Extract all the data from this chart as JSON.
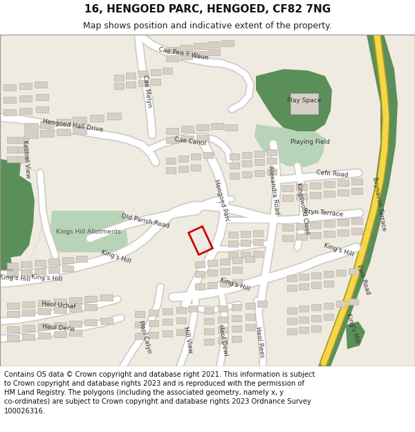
{
  "title": "16, HENGOED PARC, HENGOED, CF82 7NG",
  "subtitle": "Map shows position and indicative extent of the property.",
  "footer": "Contains OS data © Crown copyright and database right 2021. This information is subject\nto Crown copyright and database rights 2023 and is reproduced with the permission of\nHM Land Registry. The polygons (including the associated geometry, namely x, y\nco-ordinates) are subject to Crown copyright and database rights 2023 Ordnance Survey\n100026316.",
  "map_bg": "#f0ebe0",
  "road_color": "#ffffff",
  "road_outline": "#cccccc",
  "building_fill": "#d6cfc5",
  "building_outline": "#b8b0a8",
  "green_dark": "#5a8f5a",
  "green_light": "#b8d4b8",
  "green_med": "#8fbc8f",
  "yellow_road": "#f5d84a",
  "yellow_outline": "#c8a020",
  "property_color": "#cc0000",
  "title_fontsize": 11,
  "subtitle_fontsize": 9,
  "footer_fontsize": 7.2,
  "map_border": "#999999"
}
